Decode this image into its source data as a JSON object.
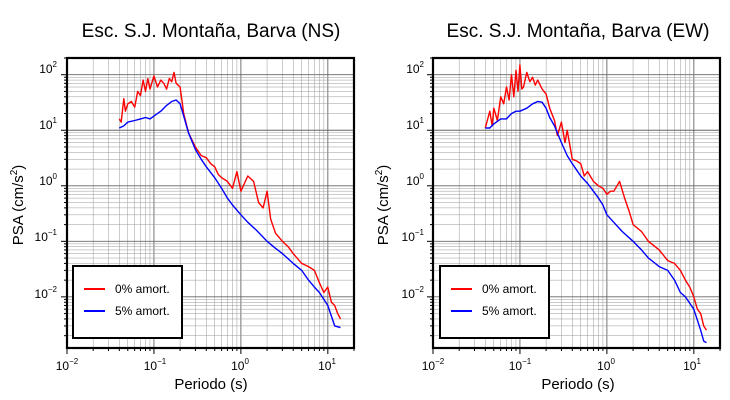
{
  "legend": {
    "entries": [
      {
        "label": "0% amort.",
        "color": "#ff0000"
      },
      {
        "label": "5% amort.",
        "color": "#0000ff"
      }
    ],
    "placement": "bottom-left"
  },
  "chart_data": [
    {
      "type": "line",
      "title": "Esc. S.J. Montaña, Barva (NS)",
      "xlabel": "Periodo (s)",
      "ylabel_text": "PSA (cm/s",
      "ylabel_sup": "2",
      "ylabel_close": ")",
      "xscale": "log",
      "yscale": "log",
      "xlim": [
        0.01,
        20
      ],
      "ylim": [
        0.0012,
        200
      ],
      "grid": true,
      "x_ticks": [
        {
          "base": "10",
          "exp": "−2",
          "value": 0.01
        },
        {
          "base": "10",
          "exp": "−1",
          "value": 0.1
        },
        {
          "base": "10",
          "exp": "0",
          "value": 1
        },
        {
          "base": "10",
          "exp": "1",
          "value": 10
        }
      ],
      "y_ticks": [
        {
          "base": "10",
          "exp": "−2",
          "value": 0.01
        },
        {
          "base": "10",
          "exp": "−1",
          "value": 0.1
        },
        {
          "base": "10",
          "exp": "0",
          "value": 1
        },
        {
          "base": "10",
          "exp": "1",
          "value": 10
        },
        {
          "base": "10",
          "exp": "2",
          "value": 100
        }
      ],
      "series": [
        {
          "name": "0% amort.",
          "color": "#ff0000",
          "x": [
            0.04,
            0.042,
            0.045,
            0.047,
            0.05,
            0.055,
            0.06,
            0.065,
            0.07,
            0.075,
            0.08,
            0.085,
            0.09,
            0.1,
            0.11,
            0.12,
            0.13,
            0.14,
            0.15,
            0.16,
            0.17,
            0.18,
            0.2,
            0.22,
            0.25,
            0.3,
            0.35,
            0.4,
            0.45,
            0.5,
            0.55,
            0.6,
            0.7,
            0.8,
            0.9,
            1.0,
            1.2,
            1.4,
            1.6,
            1.8,
            2.0,
            2.2,
            2.5,
            3.0,
            3.5,
            4.0,
            5.0,
            6.0,
            7.0,
            8.0,
            9.0,
            10.0,
            11.0,
            12.0,
            13.0,
            14.0
          ],
          "y": [
            16,
            14,
            37,
            22,
            30,
            33,
            26,
            50,
            42,
            80,
            50,
            85,
            55,
            95,
            60,
            80,
            70,
            55,
            85,
            75,
            110,
            70,
            60,
            20,
            9,
            5,
            3.5,
            3.2,
            2.5,
            2.2,
            1.6,
            1.4,
            1.2,
            0.9,
            1.8,
            0.8,
            1.5,
            1.2,
            0.5,
            0.4,
            0.8,
            0.25,
            0.14,
            0.1,
            0.08,
            0.06,
            0.04,
            0.035,
            0.03,
            0.018,
            0.012,
            0.015,
            0.008,
            0.007,
            0.005,
            0.004
          ]
        },
        {
          "name": "5% amort.",
          "color": "#0000ff",
          "x": [
            0.04,
            0.045,
            0.05,
            0.06,
            0.07,
            0.08,
            0.09,
            0.1,
            0.12,
            0.14,
            0.16,
            0.18,
            0.2,
            0.22,
            0.25,
            0.3,
            0.35,
            0.4,
            0.5,
            0.6,
            0.7,
            0.8,
            1.0,
            1.2,
            1.5,
            2.0,
            2.5,
            3.0,
            4.0,
            5.0,
            6.0,
            7.0,
            8.0,
            10.0,
            12.0,
            14.0
          ],
          "y": [
            11,
            12,
            14,
            15,
            16,
            17,
            16,
            18,
            22,
            28,
            33,
            35,
            30,
            18,
            9,
            4.5,
            3,
            2.2,
            1.4,
            0.9,
            0.6,
            0.45,
            0.3,
            0.22,
            0.16,
            0.1,
            0.075,
            0.06,
            0.04,
            0.03,
            0.02,
            0.015,
            0.012,
            0.007,
            0.003,
            0.0028
          ]
        }
      ]
    },
    {
      "type": "line",
      "title": "Esc. S.J. Montaña, Barva (EW)",
      "xlabel": "Periodo (s)",
      "ylabel_text": "PSA (cm/s",
      "ylabel_sup": "2",
      "ylabel_close": ")",
      "xscale": "log",
      "yscale": "log",
      "xlim": [
        0.01,
        20
      ],
      "ylim": [
        0.0012,
        200
      ],
      "grid": true,
      "x_ticks": [
        {
          "base": "10",
          "exp": "−2",
          "value": 0.01
        },
        {
          "base": "10",
          "exp": "−1",
          "value": 0.1
        },
        {
          "base": "10",
          "exp": "0",
          "value": 1
        },
        {
          "base": "10",
          "exp": "1",
          "value": 10
        }
      ],
      "y_ticks": [
        {
          "base": "10",
          "exp": "−2",
          "value": 0.01
        },
        {
          "base": "10",
          "exp": "−1",
          "value": 0.1
        },
        {
          "base": "10",
          "exp": "0",
          "value": 1
        },
        {
          "base": "10",
          "exp": "1",
          "value": 10
        },
        {
          "base": "10",
          "exp": "2",
          "value": 100
        }
      ],
      "series": [
        {
          "name": "0% amort.",
          "color": "#ff0000",
          "x": [
            0.04,
            0.045,
            0.048,
            0.05,
            0.055,
            0.06,
            0.065,
            0.07,
            0.075,
            0.08,
            0.085,
            0.09,
            0.095,
            0.1,
            0.105,
            0.11,
            0.12,
            0.13,
            0.14,
            0.15,
            0.16,
            0.18,
            0.2,
            0.22,
            0.25,
            0.27,
            0.3,
            0.33,
            0.35,
            0.4,
            0.45,
            0.5,
            0.55,
            0.6,
            0.7,
            0.8,
            0.9,
            1.0,
            1.1,
            1.2,
            1.4,
            1.6,
            1.8,
            2.0,
            2.5,
            3.0,
            4.0,
            5.0,
            6.0,
            7.0,
            8.0,
            9.0,
            10.0,
            11.0,
            12.0,
            13.0,
            14.0
          ],
          "y": [
            11,
            22,
            12,
            25,
            15,
            40,
            30,
            60,
            35,
            100,
            40,
            120,
            50,
            150,
            55,
            60,
            110,
            75,
            90,
            65,
            80,
            55,
            45,
            25,
            15,
            8,
            14,
            6,
            10,
            3,
            2.8,
            2.5,
            1.5,
            1.8,
            1.2,
            1.0,
            0.9,
            0.7,
            0.8,
            0.8,
            1.2,
            0.6,
            0.35,
            0.2,
            0.15,
            0.1,
            0.07,
            0.045,
            0.04,
            0.03,
            0.02,
            0.015,
            0.01,
            0.006,
            0.005,
            0.003,
            0.0025
          ]
        },
        {
          "name": "5% amort.",
          "color": "#0000ff",
          "x": [
            0.04,
            0.045,
            0.05,
            0.06,
            0.07,
            0.08,
            0.09,
            0.1,
            0.12,
            0.14,
            0.16,
            0.18,
            0.2,
            0.22,
            0.25,
            0.3,
            0.35,
            0.4,
            0.5,
            0.6,
            0.7,
            0.8,
            0.9,
            1.0,
            1.2,
            1.5,
            2.0,
            2.5,
            3.0,
            4.0,
            5.0,
            6.0,
            7.0,
            8.0,
            10.0,
            12.0,
            13.0,
            14.0
          ],
          "y": [
            11,
            11,
            13,
            16,
            16,
            20,
            22,
            22,
            25,
            30,
            33,
            32,
            25,
            17,
            12,
            6,
            3.5,
            2.5,
            1.5,
            1.1,
            0.8,
            0.6,
            0.45,
            0.3,
            0.22,
            0.15,
            0.1,
            0.07,
            0.05,
            0.035,
            0.03,
            0.02,
            0.012,
            0.01,
            0.006,
            0.0025,
            0.0016,
            0.0015
          ]
        }
      ]
    }
  ]
}
